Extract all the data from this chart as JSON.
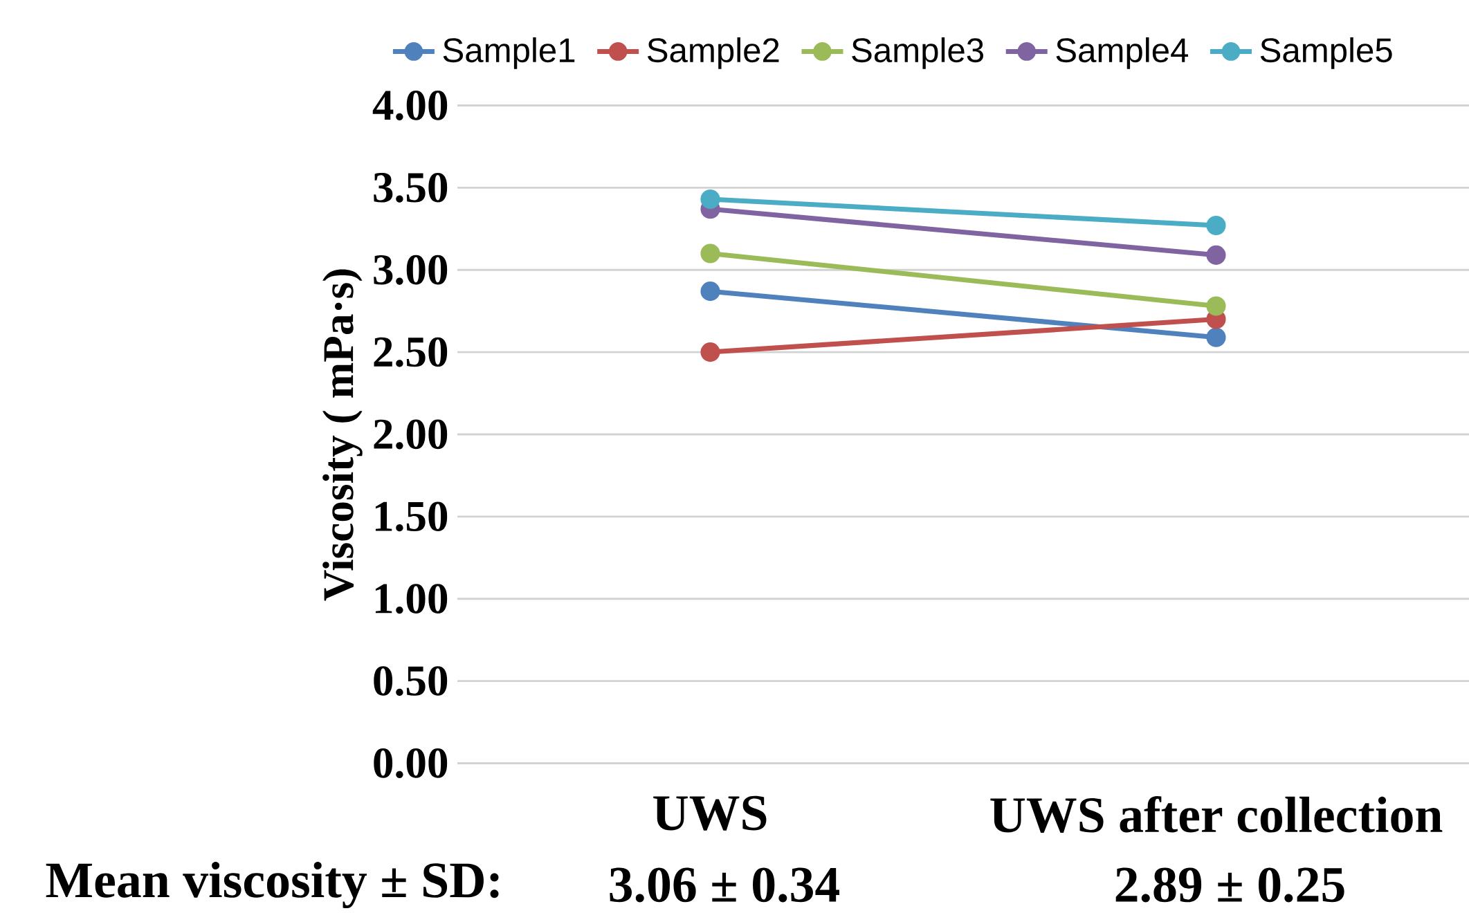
{
  "chart_data": {
    "type": "line",
    "ylabel": "Viscosity ( mPa·s)",
    "categories": [
      "UWS",
      "UWS after collection"
    ],
    "series": [
      {
        "name": "Sample1",
        "color": "#4f81bd",
        "values": [
          2.87,
          2.59
        ]
      },
      {
        "name": "Sample2",
        "color": "#c0504d",
        "values": [
          2.5,
          2.7
        ]
      },
      {
        "name": "Sample3",
        "color": "#9bbb59",
        "values": [
          3.1,
          2.78
        ]
      },
      {
        "name": "Sample4",
        "color": "#8064a2",
        "values": [
          3.37,
          3.09
        ]
      },
      {
        "name": "Sample5",
        "color": "#4bacc6",
        "values": [
          3.43,
          3.27
        ]
      }
    ],
    "ylim": [
      0,
      4
    ],
    "yticks": [
      {
        "value": 0,
        "label": "0.00"
      },
      {
        "value": 0.5,
        "label": "0.50"
      },
      {
        "value": 1,
        "label": "1.00"
      },
      {
        "value": 1.5,
        "label": "1.50"
      },
      {
        "value": 2,
        "label": "2.00"
      },
      {
        "value": 2.5,
        "label": "2.50"
      },
      {
        "value": 3,
        "label": "3.00"
      },
      {
        "value": 3.5,
        "label": "3.50"
      },
      {
        "value": 4,
        "label": "4.00"
      }
    ],
    "grid": "y",
    "legend": "top",
    "marker": "circle",
    "line_style": "solid",
    "annotations": [
      "Mean viscosity ± SD:",
      "3.06 ± 0.34",
      "2.89 ± 0.25"
    ]
  }
}
